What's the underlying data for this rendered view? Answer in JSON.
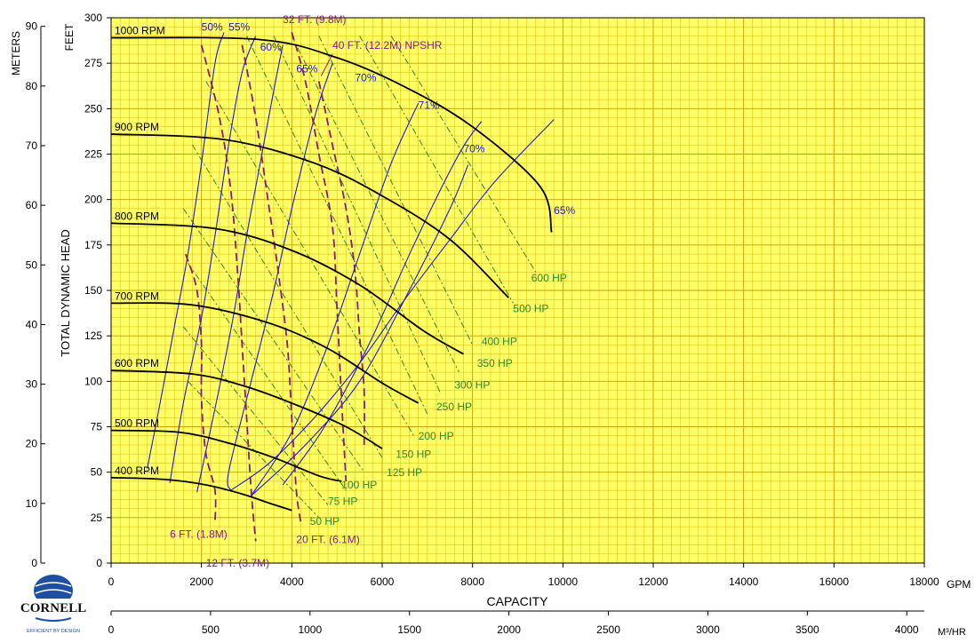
{
  "chart_data": {
    "type": "line",
    "title": "",
    "xlabel": "CAPACITY",
    "x_unit": "GPM",
    "x2_unit": "M³/HR",
    "ylabel": "TOTAL DYNAMIC HEAD",
    "y_unit": "FEET",
    "y2_unit": "METERS",
    "xlim": [
      0,
      18000
    ],
    "ylim": [
      0,
      300
    ],
    "x_ticks": [
      "0",
      "2000",
      "4000",
      "6000",
      "8000",
      "10000",
      "12000",
      "14000",
      "16000",
      "18000"
    ],
    "y_ticks": [
      "0",
      "25",
      "50",
      "75",
      "100",
      "125",
      "150",
      "175",
      "200",
      "225",
      "250",
      "275",
      "300"
    ],
    "meter_ticks": [
      "0",
      "10",
      "20",
      "30",
      "40",
      "50",
      "60",
      "70",
      "80",
      "90"
    ],
    "m3hr_ticks": [
      "0",
      "500",
      "1000",
      "1500",
      "2000",
      "2500",
      "3000",
      "3500",
      "4000"
    ],
    "grid": true,
    "colors": {
      "background": "#ffff66",
      "grid": "#e8b400",
      "speed": "#000000",
      "efficiency": "#1a1acc",
      "power": "#2a8a2a",
      "npsh": "#8a1a7a"
    },
    "speed_curves": [
      {
        "name": "1000 RPM",
        "points": [
          [
            0,
            289
          ],
          [
            3300,
            288
          ],
          [
            5000,
            278
          ],
          [
            6500,
            262
          ],
          [
            8000,
            240
          ],
          [
            9500,
            207
          ],
          [
            9750,
            182
          ]
        ]
      },
      {
        "name": "900 RPM",
        "points": [
          [
            0,
            236
          ],
          [
            2500,
            233
          ],
          [
            4500,
            220
          ],
          [
            6000,
            202
          ],
          [
            7500,
            178
          ],
          [
            8800,
            146
          ]
        ]
      },
      {
        "name": "800 RPM",
        "points": [
          [
            0,
            187
          ],
          [
            2300,
            184
          ],
          [
            4000,
            172
          ],
          [
            5500,
            153
          ],
          [
            6900,
            128
          ],
          [
            7800,
            115
          ]
        ]
      },
      {
        "name": "700 RPM",
        "points": [
          [
            0,
            143
          ],
          [
            1800,
            142
          ],
          [
            3500,
            132
          ],
          [
            4800,
            118
          ],
          [
            6000,
            99
          ],
          [
            6800,
            88
          ]
        ]
      },
      {
        "name": "600 RPM",
        "points": [
          [
            0,
            106
          ],
          [
            1800,
            104
          ],
          [
            3000,
            97
          ],
          [
            4200,
            86
          ],
          [
            5200,
            75
          ],
          [
            6000,
            63
          ]
        ]
      },
      {
        "name": "500 RPM",
        "points": [
          [
            0,
            73
          ],
          [
            1500,
            72
          ],
          [
            2600,
            66
          ],
          [
            3600,
            58
          ],
          [
            4600,
            48
          ],
          [
            5100,
            45
          ]
        ]
      },
      {
        "name": "400 RPM",
        "points": [
          [
            0,
            47
          ],
          [
            1200,
            46
          ],
          [
            2100,
            43
          ],
          [
            2900,
            38
          ],
          [
            3500,
            33
          ],
          [
            4000,
            29
          ]
        ]
      }
    ],
    "efficiency_curves": [
      {
        "label": "50%",
        "points": [
          [
            800,
            52
          ],
          [
            1100,
            90
          ],
          [
            1400,
            130
          ],
          [
            1700,
            170
          ],
          [
            2000,
            220
          ],
          [
            2300,
            275
          ],
          [
            2500,
            292
          ]
        ]
      },
      {
        "label": "55%",
        "points": [
          [
            1300,
            44
          ],
          [
            1600,
            88
          ],
          [
            2000,
            135
          ],
          [
            2300,
            180
          ],
          [
            2600,
            230
          ],
          [
            2900,
            270
          ],
          [
            3200,
            290
          ]
        ]
      },
      {
        "label": "60%",
        "points": [
          [
            1900,
            39
          ],
          [
            2300,
            85
          ],
          [
            2700,
            135
          ],
          [
            3000,
            180
          ],
          [
            3300,
            220
          ],
          [
            3600,
            260
          ],
          [
            3800,
            285
          ]
        ]
      },
      {
        "label": "65%",
        "points": [
          [
            2650,
            40
          ],
          [
            2600,
            50
          ],
          [
            3100,
            100
          ],
          [
            3600,
            150
          ],
          [
            4000,
            195
          ],
          [
            4500,
            245
          ],
          [
            4900,
            275
          ]
        ]
      },
      {
        "label": "65%",
        "points": [
          [
            2650,
            40
          ],
          [
            3500,
            55
          ],
          [
            4500,
            80
          ],
          [
            5500,
            110
          ],
          [
            6500,
            145
          ],
          [
            7500,
            178
          ],
          [
            8500,
            210
          ],
          [
            9800,
            244
          ]
        ]
      },
      {
        "label": "70%",
        "points": [
          [
            3100,
            37
          ],
          [
            4000,
            72
          ],
          [
            4800,
            120
          ],
          [
            5500,
            170
          ],
          [
            6200,
            220
          ],
          [
            6800,
            253
          ]
        ]
      },
      {
        "label": "70%",
        "points": [
          [
            3100,
            37
          ],
          [
            4300,
            65
          ],
          [
            5500,
            100
          ],
          [
            6600,
            150
          ],
          [
            7500,
            195
          ],
          [
            7900,
            219
          ]
        ]
      },
      {
        "label": "71%",
        "points": [
          [
            3800,
            43
          ],
          [
            4700,
            74
          ],
          [
            5700,
            120
          ],
          [
            6700,
            175
          ],
          [
            7700,
            225
          ],
          [
            8200,
            243
          ]
        ]
      }
    ],
    "efficiency_label_pos": [
      {
        "label": "50%",
        "x": 2000,
        "y": 293
      },
      {
        "label": "55%",
        "x": 2600,
        "y": 293
      },
      {
        "label": "60%",
        "x": 3300,
        "y": 282
      },
      {
        "label": "65%",
        "x": 4100,
        "y": 270
      },
      {
        "label": "70%",
        "x": 5400,
        "y": 265
      },
      {
        "label": "71%",
        "x": 6800,
        "y": 250
      },
      {
        "label": "70%",
        "x": 7800,
        "y": 226
      },
      {
        "label": "65%",
        "x": 9800,
        "y": 192
      }
    ],
    "power_lines": [
      {
        "label": "600 HP",
        "from": [
          6200,
          290
        ],
        "to": [
          9400,
          160
        ]
      },
      {
        "label": "500 HP",
        "from": [
          5500,
          290
        ],
        "to": [
          8900,
          143
        ]
      },
      {
        "label": "400 HP",
        "from": [
          4600,
          290
        ],
        "to": [
          8000,
          120
        ]
      },
      {
        "label": "350 HP",
        "from": [
          4000,
          290
        ],
        "to": [
          7700,
          105
        ]
      },
      {
        "label": "300 HP",
        "from": [
          3600,
          290
        ],
        "to": [
          7300,
          93
        ]
      },
      {
        "label": "250 HP",
        "from": [
          3000,
          290
        ],
        "to": [
          7000,
          82
        ]
      },
      {
        "label": "200 HP",
        "from": [
          2100,
          265
        ],
        "to": [
          6700,
          70
        ]
      },
      {
        "label": "150 HP",
        "from": [
          1800,
          230
        ],
        "to": [
          6000,
          58
        ]
      },
      {
        "label": "125 HP",
        "from": [
          1600,
          195
        ],
        "to": [
          5600,
          50
        ]
      },
      {
        "label": "100 HP",
        "from": [
          1700,
          165
        ],
        "to": [
          5200,
          40
        ]
      },
      {
        "label": "75 HP",
        "from": [
          1600,
          130
        ],
        "to": [
          4800,
          32
        ]
      },
      {
        "label": "50 HP",
        "from": [
          1700,
          100
        ],
        "to": [
          4600,
          25
        ]
      }
    ],
    "power_label_pos": [
      {
        "label": "600 HP",
        "x": 9300,
        "y": 155
      },
      {
        "label": "500 HP",
        "x": 8900,
        "y": 138
      },
      {
        "label": "400 HP",
        "x": 8200,
        "y": 120
      },
      {
        "label": "350 HP",
        "x": 8100,
        "y": 108
      },
      {
        "label": "300 HP",
        "x": 7600,
        "y": 96
      },
      {
        "label": "250 HP",
        "x": 7200,
        "y": 84
      },
      {
        "label": "200 HP",
        "x": 6800,
        "y": 68
      },
      {
        "label": "150 HP",
        "x": 6300,
        "y": 58
      },
      {
        "label": "125 HP",
        "x": 6100,
        "y": 48
      },
      {
        "label": "100 HP",
        "x": 5100,
        "y": 41
      },
      {
        "label": "75 HP",
        "x": 4800,
        "y": 32
      },
      {
        "label": "50 HP",
        "x": 4400,
        "y": 21
      }
    ],
    "npsh_curves": [
      {
        "label": "6 FT. (1.8M)",
        "points": [
          [
            1650,
            170
          ],
          [
            1900,
            150
          ],
          [
            2000,
            120
          ],
          [
            2000,
            90
          ],
          [
            2100,
            60
          ],
          [
            2300,
            40
          ],
          [
            2300,
            22
          ]
        ]
      },
      {
        "label": "12 FT. (3.7M)",
        "points": [
          [
            2000,
            285
          ],
          [
            2400,
            245
          ],
          [
            2650,
            205
          ],
          [
            2800,
            160
          ],
          [
            2900,
            120
          ],
          [
            3000,
            80
          ],
          [
            3100,
            40
          ],
          [
            3200,
            12
          ]
        ]
      },
      {
        "label": "20 FT. (6.1M)",
        "points": [
          [
            2900,
            285
          ],
          [
            3200,
            245
          ],
          [
            3500,
            195
          ],
          [
            3700,
            160
          ],
          [
            3900,
            120
          ],
          [
            4000,
            80
          ],
          [
            4100,
            40
          ],
          [
            4200,
            22
          ]
        ]
      },
      {
        "label": "32 FT. (9.8M)",
        "points": [
          [
            4000,
            292
          ],
          [
            4300,
            265
          ],
          [
            4600,
            225
          ],
          [
            4900,
            185
          ],
          [
            5000,
            140
          ],
          [
            5100,
            90
          ],
          [
            5200,
            45
          ]
        ]
      },
      {
        "label": "40 FT. (12.2M) NPSHR",
        "points": [
          [
            4600,
            265
          ],
          [
            4900,
            230
          ],
          [
            5200,
            195
          ],
          [
            5400,
            160
          ],
          [
            5500,
            125
          ],
          [
            5600,
            95
          ],
          [
            5600,
            65
          ]
        ]
      }
    ],
    "npsh_label_pos": [
      {
        "label": "6 FT. (1.8M)",
        "x": 1300,
        "y": 14
      },
      {
        "label": "12 FT. (3.7M)",
        "x": 2100,
        "y": -2
      },
      {
        "label": "20 FT. (6.1M)",
        "x": 4100,
        "y": 11
      },
      {
        "label": "32 FT. (9.8M)",
        "x": 3800,
        "y": 297
      },
      {
        "label": "40 FT. (12.2M) NPSHR",
        "x": 4900,
        "y": 283
      }
    ]
  },
  "logo": {
    "name": "CORNELL",
    "tagline": "EFFICIENT BY DESIGN"
  }
}
